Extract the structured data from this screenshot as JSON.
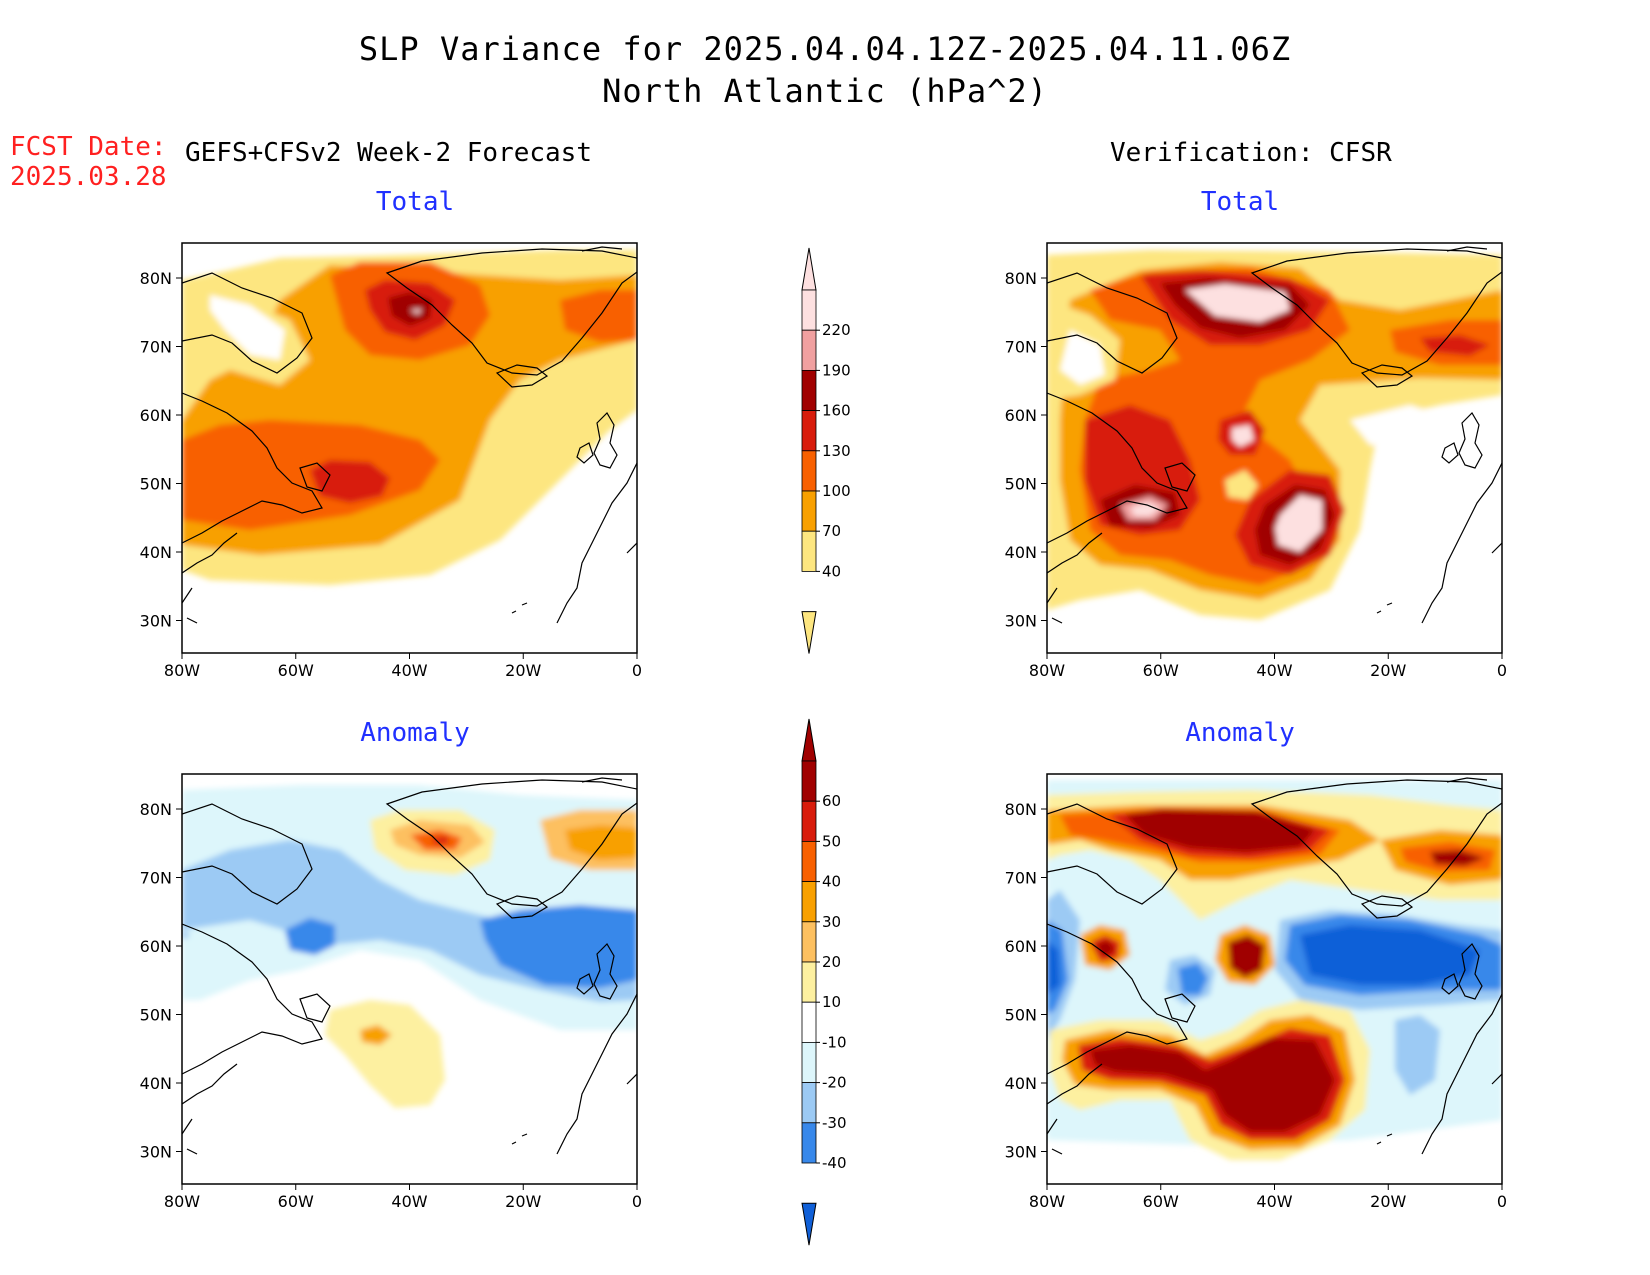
{
  "header": {
    "title_line1": "SLP Variance for 2025.04.04.12Z-2025.04.11.06Z",
    "title_line2": "North Atlantic (hPa^2)"
  },
  "fcst": {
    "label": "FCST Date:",
    "date": "2025.03.28"
  },
  "columns": {
    "left": "GEFS+CFSv2 Week-2 Forecast",
    "right": "Verification: CFSR"
  },
  "panels": {
    "fc_total": "Total",
    "vf_total": "Total",
    "fc_anom": "Anomaly",
    "vf_anom": "Anomaly"
  },
  "axes": {
    "lon_labels": [
      "80W",
      "60W",
      "40W",
      "20W",
      "0"
    ],
    "lat_labels": [
      "80N",
      "70N",
      "60N",
      "50N",
      "40N",
      "30N"
    ]
  },
  "colorbars": {
    "total": {
      "levels": [
        "220",
        "190",
        "160",
        "130",
        "100",
        "70",
        "40"
      ],
      "colors": [
        "#fde0e0",
        "#f0a0a0",
        "#a00000",
        "#d81c0c",
        "#f86000",
        "#f8a000",
        "#fde680"
      ]
    },
    "anomaly": {
      "levels": [
        "60",
        "50",
        "40",
        "30",
        "20",
        "10",
        "-10",
        "-20",
        "-30",
        "-40"
      ],
      "colors": [
        "#a00000",
        "#d81c0c",
        "#f86000",
        "#f8a000",
        "#fdc060",
        "#fdf0a0",
        "#ffffff",
        "#ddf6fb",
        "#9ccaf4",
        "#3888ea",
        "#1060d8"
      ]
    }
  },
  "colors": {
    "title_blue": "#2030ff",
    "fcst_red": "#ff2020"
  }
}
